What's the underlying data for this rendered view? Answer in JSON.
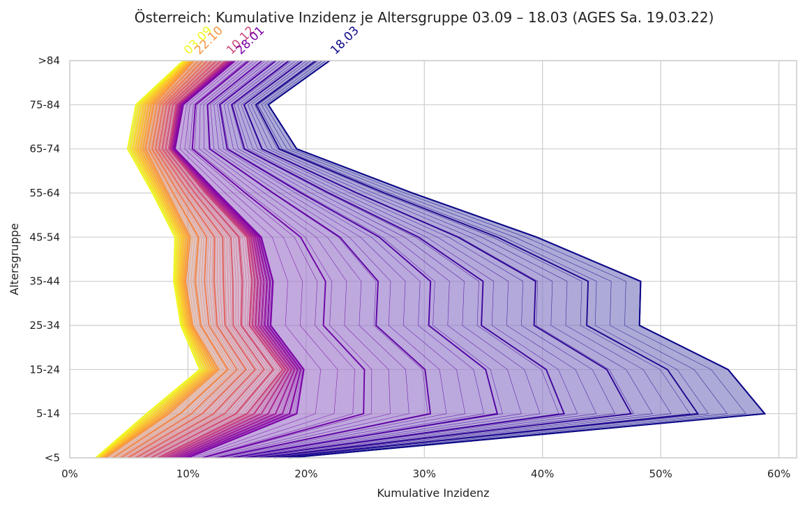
{
  "chart_data": {
    "type": "line",
    "title": "Österreich: Kumulative Inzidenz je Altersgruppe 03.09 – 18.03 (AGES Sa. 19.03.22)",
    "xlabel": "Kumulative Inzidenz",
    "ylabel": "Altersgruppe",
    "categories": [
      "<5",
      "5-14",
      "15-24",
      "25-34",
      "35-44",
      "45-54",
      "55-64",
      "65-74",
      "75-84",
      ">84"
    ],
    "x_ticks": [
      "0%",
      "10%",
      "20%",
      "30%",
      "40%",
      "50%",
      "60%"
    ],
    "xlim": [
      0,
      61.5
    ],
    "grid": true,
    "colormap": "plasma",
    "fill_color": "#b8b8e0",
    "start_date": "03.09",
    "end_date": "18.03",
    "series": [
      {
        "name": "03.09",
        "values": [
          2.2,
          6.5,
          11.0,
          9.4,
          8.8,
          8.9,
          7.0,
          4.9,
          5.6,
          9.6
        ]
      },
      {
        "name": "22.10",
        "values": [
          3.0,
          8.4,
          12.6,
          10.4,
          9.8,
          10.2,
          8.3,
          6.4,
          7.1,
          10.5
        ]
      },
      {
        "name": "10.12",
        "values": [
          7.5,
          15.0,
          18.0,
          15.2,
          15.4,
          15.0,
          11.5,
          8.4,
          9.0,
          13.2
        ]
      },
      {
        "name": "28.01",
        "values": [
          10.0,
          19.2,
          19.8,
          17.0,
          17.2,
          16.2,
          12.5,
          8.9,
          9.6,
          14.0
        ]
      },
      {
        "name": "18.03",
        "values": [
          18.5,
          58.8,
          55.7,
          48.2,
          48.3,
          39.5,
          29.0,
          19.2,
          16.8,
          22.0
        ]
      }
    ]
  }
}
